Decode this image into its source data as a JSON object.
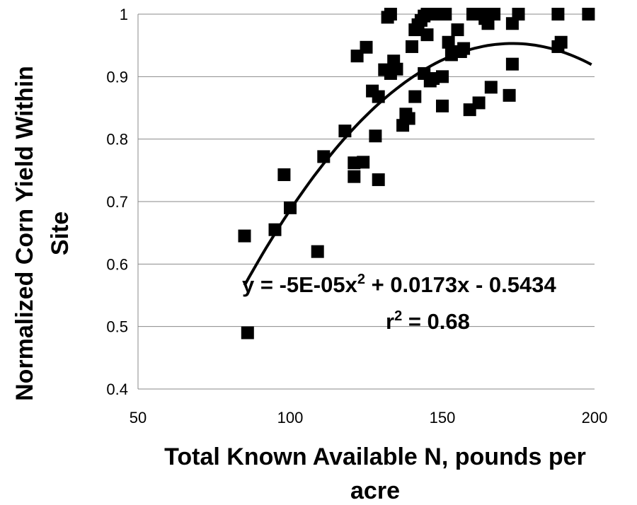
{
  "chart_data": {
    "type": "scatter",
    "xlabel": [
      "Total Known Available N, pounds per",
      "acre"
    ],
    "ylabel": [
      "Normalized Corn Yield Within",
      "Site"
    ],
    "xlim": [
      50,
      200
    ],
    "ylim": [
      0.4,
      1.0
    ],
    "xticks": [
      "50",
      "100",
      "150",
      "200"
    ],
    "yticks": [
      "0.4",
      "0.5",
      "0.6",
      "0.7",
      "0.8",
      "0.9",
      "1"
    ],
    "grid": "horizontal",
    "marker": "square",
    "color": "#000000",
    "trendline": {
      "type": "polynomial",
      "coefficients": [
        -5e-05,
        0.0173,
        -0.5434
      ],
      "x_range": [
        85,
        199
      ],
      "equation_text": "y = -5E-05x",
      "equation_text_sup": "2",
      "equation_text_tail": " + 0.0173x - 0.5434",
      "r2_prefix": "r",
      "r2_sup": "2",
      "r2_tail": " = 0.68"
    },
    "points": [
      [
        85,
        0.645
      ],
      [
        86,
        0.49
      ],
      [
        95,
        0.655
      ],
      [
        98,
        0.743
      ],
      [
        100,
        0.69
      ],
      [
        109,
        0.62
      ],
      [
        111,
        0.772
      ],
      [
        118,
        0.813
      ],
      [
        121,
        0.762
      ],
      [
        121,
        0.74
      ],
      [
        122,
        0.933
      ],
      [
        124,
        0.763
      ],
      [
        125,
        0.947
      ],
      [
        127,
        0.877
      ],
      [
        128,
        0.805
      ],
      [
        129,
        0.868
      ],
      [
        129,
        0.735
      ],
      [
        131,
        0.911
      ],
      [
        132,
        0.995
      ],
      [
        133,
        1.0
      ],
      [
        133,
        0.905
      ],
      [
        134,
        0.925
      ],
      [
        135,
        0.912
      ],
      [
        137,
        0.822
      ],
      [
        138,
        0.84
      ],
      [
        139,
        0.833
      ],
      [
        140,
        0.948
      ],
      [
        141,
        0.975
      ],
      [
        141,
        0.868
      ],
      [
        142,
        0.983
      ],
      [
        143,
        0.99
      ],
      [
        144,
        0.997
      ],
      [
        144,
        0.905
      ],
      [
        145,
        1.0
      ],
      [
        145,
        0.967
      ],
      [
        146,
        0.893
      ],
      [
        147,
        0.897
      ],
      [
        148,
        1.0
      ],
      [
        149,
        1.0
      ],
      [
        150,
        0.9
      ],
      [
        150,
        0.853
      ],
      [
        151,
        1.0
      ],
      [
        152,
        0.955
      ],
      [
        153,
        0.935
      ],
      [
        155,
        0.975
      ],
      [
        156,
        0.94
      ],
      [
        157,
        0.945
      ],
      [
        159,
        0.847
      ],
      [
        160,
        1.0
      ],
      [
        162,
        0.858
      ],
      [
        163,
        1.0
      ],
      [
        164,
        0.993
      ],
      [
        165,
        0.985
      ],
      [
        166,
        0.883
      ],
      [
        167,
        1.0
      ],
      [
        172,
        0.87
      ],
      [
        173,
        0.985
      ],
      [
        173,
        0.92
      ],
      [
        175,
        1.0
      ],
      [
        188,
        0.948
      ],
      [
        188,
        1.0
      ],
      [
        189,
        0.955
      ],
      [
        198,
        1.0
      ]
    ]
  }
}
